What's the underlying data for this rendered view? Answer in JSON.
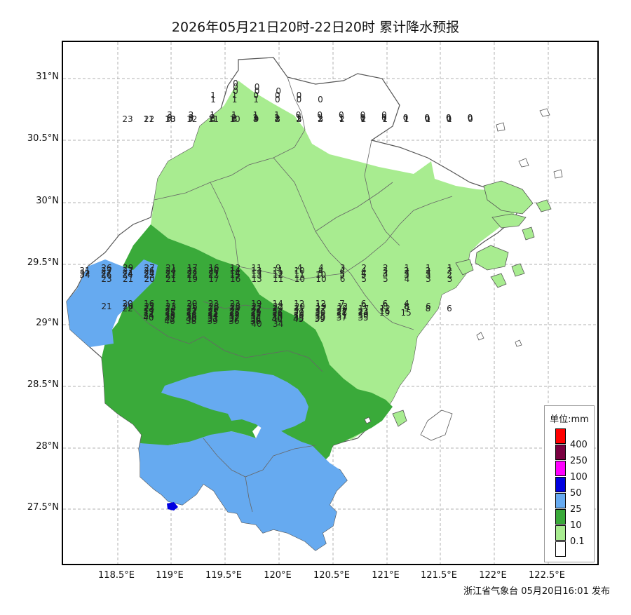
{
  "title": "2026年05月21日20时-22日20时 累计降水预报",
  "issuer": "浙江省气象台 05月20日16:01 发布",
  "lat_labels": [
    "31°N",
    "30.5°N",
    "30°N",
    "29.5°N",
    "29°N",
    "28.5°N",
    "28°N",
    "27.5°N"
  ],
  "lon_labels": [
    "118.5°E",
    "119°E",
    "119.5°E",
    "120°E",
    "120.5°E",
    "121°E",
    "121.5°E",
    "122°E",
    "122.5°E"
  ],
  "legend": {
    "title": "单位:mm",
    "levels": [
      {
        "label": "400",
        "color": "#ff0000"
      },
      {
        "label": "250",
        "color": "#7a0040"
      },
      {
        "label": "100",
        "color": "#ff00ff"
      },
      {
        "label": "50",
        "color": "#0000e0"
      },
      {
        "label": "25",
        "color": "#66aaf0"
      },
      {
        "label": "10",
        "color": "#3aaa3a"
      },
      {
        "label": "0.1",
        "color": "#a8ec90"
      },
      {
        "label": "",
        "color": "#ffffff"
      }
    ]
  },
  "station_rows": [
    [
      "0"
    ],
    [
      "0",
      "0"
    ],
    [
      "0",
      "0",
      "0"
    ],
    [
      "1",
      "1",
      "0",
      "0",
      "0"
    ],
    [
      "1",
      "1",
      "1",
      "0",
      "0",
      "0"
    ],
    [
      "3",
      "2",
      "1",
      "1",
      "1",
      "1",
      "0",
      "0",
      "0",
      "0",
      "0"
    ],
    [
      "6",
      "2",
      "2",
      "1",
      "1",
      "1",
      "1",
      "1",
      "1",
      "0",
      "0",
      "0",
      "0",
      "0",
      "0"
    ],
    [
      "9",
      "3",
      "2",
      "2",
      "2",
      "2",
      "1",
      "1",
      "1",
      "1",
      "0",
      "0",
      "0",
      "0",
      "0"
    ],
    [
      "11",
      "10",
      "7",
      "6",
      "6",
      "3",
      "2",
      "2",
      "2",
      "1",
      "1",
      "1",
      "1",
      "0",
      "0",
      "0"
    ],
    [
      "23",
      "22",
      "13",
      "12",
      "11",
      "10",
      "9",
      "3",
      "3",
      "3",
      "2",
      "2",
      "1",
      "1",
      "1",
      "1"
    ],
    [
      "26",
      "29",
      "27",
      "21",
      "17",
      "16",
      "12",
      "11",
      "9",
      "4",
      "4",
      "3",
      "2",
      "2",
      "1",
      "1",
      "1"
    ],
    [
      "31",
      "27",
      "27",
      "26",
      "24",
      "22",
      "20",
      "14",
      "13",
      "11",
      "10",
      "4",
      "4",
      "4",
      "3",
      "2",
      "2",
      "2"
    ],
    [
      "32",
      "27",
      "24",
      "24",
      "23",
      "22",
      "21",
      "14",
      "13",
      "12",
      "11",
      "5",
      "5",
      "4",
      "3",
      "3",
      "3"
    ],
    [
      "34",
      "26",
      "24",
      "22",
      "21",
      "22",
      "22",
      "15",
      "13",
      "12",
      "11",
      "10",
      "5",
      "5",
      "4",
      "3",
      "3",
      "2"
    ],
    [
      "23",
      "21",
      "20",
      "21",
      "19",
      "17",
      "16",
      "13",
      "11",
      "10",
      "10",
      "6",
      "5",
      "5",
      "4",
      "3",
      "3"
    ],
    [
      "20",
      "16",
      "17",
      "20",
      "23",
      "23",
      "19",
      "14",
      "12",
      "12",
      "7",
      "6",
      "6",
      "4"
    ],
    [
      "21",
      "20",
      "21",
      "23",
      "25",
      "28",
      "28",
      "27",
      "22",
      "20",
      "19",
      "12",
      "9",
      "8",
      "8",
      "6"
    ],
    [
      "22",
      "23",
      "24",
      "25",
      "28",
      "33",
      "32",
      "29",
      "31",
      "27",
      "20",
      "17",
      "12",
      "9",
      "8",
      "6"
    ],
    [
      "19",
      "21",
      "22",
      "21",
      "22",
      "26",
      "32",
      "37",
      "31",
      "27",
      "23",
      "16"
    ],
    [
      "22",
      "25",
      "24",
      "25",
      "25",
      "25",
      "26",
      "29",
      "30",
      "28",
      "24",
      "19",
      "15"
    ],
    [
      "34",
      "38",
      "36",
      "34",
      "32",
      "32",
      "29",
      "30",
      "33",
      "31",
      "30"
    ],
    [
      "40",
      "37",
      "38",
      "31",
      "32",
      "32",
      "30",
      "33",
      "39",
      "37",
      "35"
    ],
    [
      "45",
      "40",
      "33",
      "37",
      "36",
      "40",
      "45",
      "39"
    ],
    [
      "46",
      "38",
      "39",
      "36",
      "38"
    ],
    [
      "40",
      "34"
    ]
  ]
}
